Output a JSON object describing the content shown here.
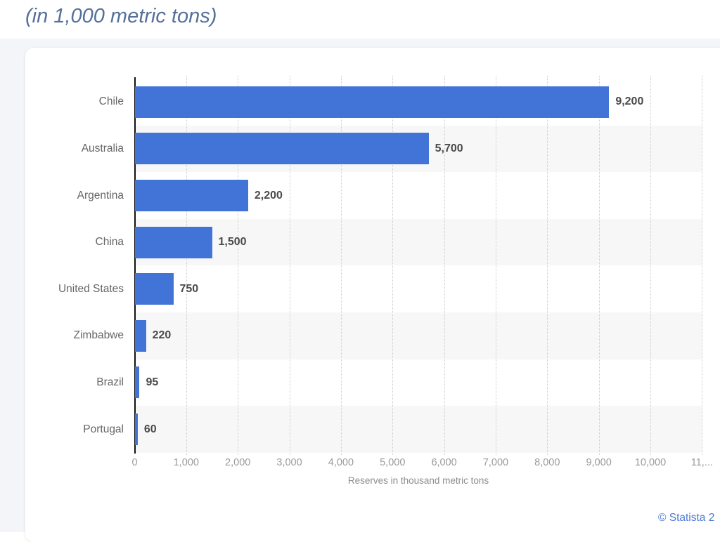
{
  "page": {
    "title": "(in 1,000 metric tons)",
    "copyright": "© Statista 2"
  },
  "chart_data": {
    "type": "bar",
    "orientation": "horizontal",
    "title": "(in 1,000 metric tons)",
    "categories": [
      "Chile",
      "Australia",
      "Argentina",
      "China",
      "United States",
      "Zimbabwe",
      "Brazil",
      "Portugal"
    ],
    "values": [
      9200,
      5700,
      2200,
      1500,
      750,
      220,
      95,
      60
    ],
    "value_labels": [
      "9,200",
      "5,700",
      "2,200",
      "1,500",
      "750",
      "220",
      "95",
      "60"
    ],
    "xlabel": "Reserves in thousand metric tons",
    "xlim": [
      0,
      11000
    ],
    "xticks": {
      "values": [
        0,
        1000,
        2000,
        3000,
        4000,
        5000,
        6000,
        7000,
        8000,
        9000,
        10000,
        11000
      ],
      "labels": [
        "0",
        "1,000",
        "2,000",
        "3,000",
        "4,000",
        "5,000",
        "6,000",
        "7,000",
        "8,000",
        "9,000",
        "10,000",
        "11,..."
      ]
    },
    "grid": "vertical-dotted",
    "legend": "none",
    "row_stripes": "alternating",
    "colors": {
      "bar": "#4273d6",
      "stripe": "#f7f7f7",
      "gridline": "#cccccc",
      "axis_line": "#111111",
      "category_label": "#666666",
      "value_label": "#4a4a4a",
      "tick_label": "#9b9b9b",
      "axis_title": "#8c8c8c",
      "chart_title": "#54709b",
      "copyright_link": "#4c79d3"
    }
  }
}
